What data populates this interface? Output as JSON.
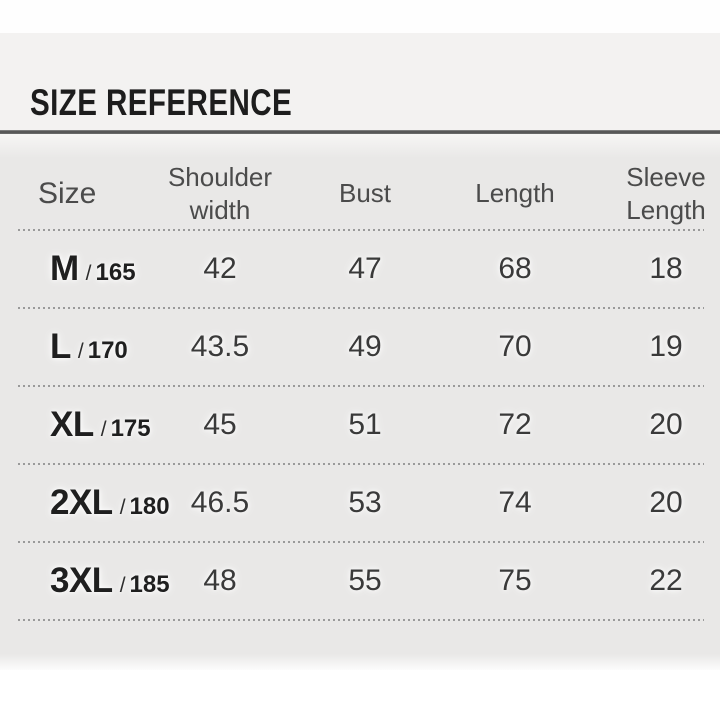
{
  "title": "SIZE REFERENCE",
  "size_table": {
    "headers": [
      "Size",
      "Shoulder width",
      "Bust",
      "Length",
      "Sleeve Length"
    ],
    "separator": "/",
    "rows": [
      {
        "size": "M",
        "height": "165",
        "shoulder": "42",
        "bust": "47",
        "length": "68",
        "sleeve": "18"
      },
      {
        "size": "L",
        "height": "170",
        "shoulder": "43.5",
        "bust": "49",
        "length": "70",
        "sleeve": "19"
      },
      {
        "size": "XL",
        "height": "175",
        "shoulder": "45",
        "bust": "51",
        "length": "72",
        "sleeve": "20"
      },
      {
        "size": "2XL",
        "height": "180",
        "shoulder": "46.5",
        "bust": "53",
        "length": "74",
        "sleeve": "20"
      },
      {
        "size": "3XL",
        "height": "185",
        "shoulder": "48",
        "bust": "55",
        "length": "75",
        "sleeve": "22"
      }
    ]
  },
  "colors": {
    "panel_grey": "#e9e8e7",
    "title_band_grey": "#f3f2f1",
    "divider_dark": "#4d4d4d",
    "dot_grey": "#9a9a9a",
    "title_text": "#1d1d1d",
    "header_text": "#4b4b4b",
    "value_text": "#3a3a3a"
  }
}
